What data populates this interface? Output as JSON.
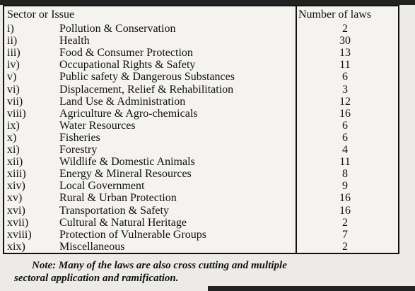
{
  "table": {
    "header": [
      "Sector or Issue",
      "Number of laws"
    ],
    "rows": [
      [
        "i)",
        "Pollution & Conservation",
        2
      ],
      [
        "ii)",
        "Health",
        30
      ],
      [
        "iii)",
        "Food & Consumer Protection",
        13
      ],
      [
        "iv)",
        "Occupational Rights & Safety",
        11
      ],
      [
        "v)",
        "Public safety & Dangerous Substances",
        6
      ],
      [
        "vi)",
        "Displacement, Relief & Rehabilitation",
        3
      ],
      [
        "vii)",
        "Land Use & Administration",
        12
      ],
      [
        "viii)",
        "Agriculture & Agro-chemicals",
        16
      ],
      [
        "ix)",
        "Water Resources",
        6
      ],
      [
        "x)",
        "Fisheries",
        6
      ],
      [
        "xi)",
        "Forestry",
        4
      ],
      [
        "xii)",
        "Wildlife & Domestic Animals",
        11
      ],
      [
        "xiii)",
        "Energy & Mineral Resources",
        8
      ],
      [
        "xiv)",
        "Local Government",
        9
      ],
      [
        "xv)",
        "Rural & Urban Protection",
        16
      ],
      [
        "xvi)",
        "Transportation & Safety",
        16
      ],
      [
        "xvii)",
        "Cultural & Natural Heritage",
        2
      ],
      [
        "xviii)",
        "Protection of Vulnerable Groups",
        7
      ],
      [
        "xix)",
        "Miscellaneous",
        2
      ]
    ]
  },
  "note": [
    "Note: Many of the laws are also cross cutting and multiple",
    "sectoral application and ramification."
  ]
}
